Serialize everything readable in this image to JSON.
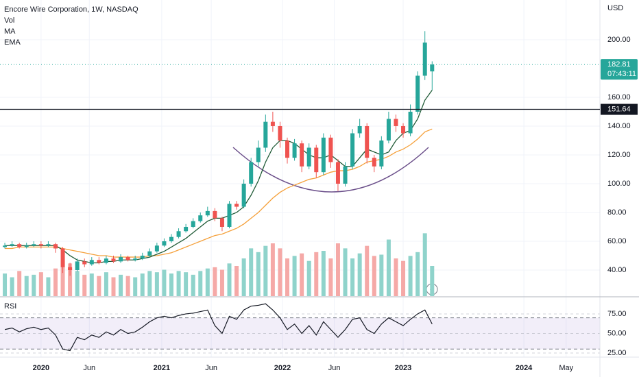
{
  "chart_data": {
    "type": "candlestick",
    "title": "Encore Wire Corporation, 1W, NASDAQ",
    "indicators": [
      "Vol",
      "MA",
      "EMA"
    ],
    "currency": "USD",
    "countdown": "07:43:11",
    "level": 151.64,
    "colors": {
      "up": "#26a69a",
      "down": "#ef5350",
      "volume_up": "#8fd3cb",
      "volume_down": "#f5a9a7",
      "ma": "#1f5a36",
      "ema": "#f5a03a",
      "rsi": "#131722",
      "level": "#131722"
    },
    "x": [
      2019.7,
      2019.76,
      2019.82,
      2019.88,
      2019.94,
      2020.0,
      2020.06,
      2020.12,
      2020.18,
      2020.24,
      2020.3,
      2020.36,
      2020.42,
      2020.48,
      2020.54,
      2020.6,
      2020.66,
      2020.72,
      2020.78,
      2020.84,
      2020.9,
      2020.96,
      2021.02,
      2021.08,
      2021.14,
      2021.2,
      2021.26,
      2021.32,
      2021.38,
      2021.44,
      2021.5,
      2021.56,
      2021.62,
      2021.68,
      2021.74,
      2021.8,
      2021.86,
      2021.92,
      2021.98,
      2022.04,
      2022.1,
      2022.16,
      2022.22,
      2022.28,
      2022.34,
      2022.4,
      2022.46,
      2022.52,
      2022.58,
      2022.64,
      2022.7,
      2022.76,
      2022.82,
      2022.88,
      2022.94,
      2023.0,
      2023.06,
      2023.12,
      2023.18,
      2023.24
    ],
    "open": [
      56,
      57,
      58,
      56,
      57,
      58,
      57,
      58,
      55,
      42,
      40,
      46,
      44,
      47,
      45,
      48,
      46,
      49,
      47,
      48,
      50,
      53,
      57,
      60,
      63,
      67,
      70,
      74,
      78,
      81,
      76,
      70,
      86,
      84,
      100,
      115,
      125,
      143,
      140,
      130,
      118,
      128,
      112,
      125,
      108,
      132,
      115,
      100,
      112,
      135,
      140,
      118,
      112,
      130,
      145,
      140,
      135,
      150,
      175,
      178
    ],
    "high": [
      59,
      60,
      59,
      59,
      60,
      60,
      60,
      59,
      56,
      45,
      48,
      48,
      49,
      49,
      50,
      50,
      51,
      50,
      50,
      52,
      55,
      59,
      62,
      65,
      69,
      72,
      76,
      80,
      84,
      83,
      77,
      88,
      88,
      103,
      118,
      130,
      148,
      150,
      143,
      132,
      131,
      130,
      128,
      127,
      135,
      134,
      117,
      115,
      138,
      145,
      142,
      120,
      133,
      150,
      148,
      142,
      155,
      178,
      206,
      185
    ],
    "low": [
      55,
      56,
      55,
      55,
      56,
      55,
      56,
      52,
      38,
      36,
      39,
      42,
      43,
      44,
      44,
      45,
      45,
      46,
      46,
      47,
      49,
      52,
      56,
      59,
      62,
      66,
      69,
      73,
      77,
      74,
      67,
      69,
      82,
      83,
      98,
      112,
      122,
      136,
      125,
      114,
      116,
      108,
      110,
      104,
      106,
      111,
      95,
      98,
      110,
      132,
      114,
      108,
      110,
      128,
      136,
      132,
      133,
      148,
      172,
      165
    ],
    "close": [
      57,
      58,
      56,
      57,
      58,
      57,
      58,
      55,
      42,
      40,
      46,
      44,
      47,
      45,
      48,
      46,
      49,
      47,
      48,
      50,
      53,
      57,
      60,
      63,
      67,
      70,
      74,
      78,
      81,
      76,
      70,
      86,
      84,
      100,
      115,
      125,
      143,
      140,
      130,
      118,
      128,
      112,
      125,
      108,
      132,
      115,
      100,
      112,
      135,
      140,
      118,
      112,
      130,
      145,
      140,
      135,
      150,
      175,
      198,
      182.81
    ],
    "volume": [
      180,
      150,
      200,
      160,
      170,
      190,
      150,
      220,
      280,
      260,
      200,
      170,
      180,
      160,
      190,
      150,
      170,
      160,
      150,
      180,
      200,
      190,
      210,
      180,
      200,
      190,
      170,
      200,
      220,
      230,
      210,
      260,
      240,
      300,
      380,
      350,
      400,
      420,
      380,
      300,
      320,
      340,
      280,
      350,
      360,
      300,
      420,
      380,
      300,
      340,
      400,
      320,
      330,
      450,
      300,
      280,
      320,
      350,
      500,
      240
    ],
    "volume_lim": [
      0,
      600
    ],
    "ma": [
      57,
      57,
      57,
      57,
      57,
      57,
      57,
      57,
      54,
      50,
      47,
      46,
      45,
      45,
      46,
      46,
      47,
      47,
      47,
      48,
      49,
      51,
      53,
      56,
      59,
      62,
      66,
      70,
      74,
      76,
      76,
      78,
      80,
      84,
      92,
      102,
      115,
      125,
      130,
      130,
      128,
      124,
      120,
      118,
      118,
      120,
      116,
      112,
      112,
      118,
      124,
      122,
      120,
      122,
      130,
      135,
      137,
      145,
      158,
      165
    ],
    "ema": [
      55,
      55,
      56,
      56,
      56,
      56,
      56,
      56,
      55,
      54,
      53,
      52,
      51,
      50,
      50,
      49,
      49,
      49,
      49,
      49,
      50,
      50,
      51,
      52,
      54,
      56,
      58,
      60,
      62,
      64,
      65,
      67,
      69,
      72,
      76,
      80,
      85,
      90,
      94,
      97,
      99,
      101,
      103,
      104,
      106,
      108,
      109,
      109,
      110,
      112,
      115,
      116,
      117,
      119,
      122,
      124,
      127,
      131,
      136,
      138
    ],
    "ylim": [
      21.9,
      227.6
    ],
    "yticks": [
      {
        "value": 40,
        "label": "40.00"
      },
      {
        "value": 60,
        "label": "60.00"
      },
      {
        "value": 80,
        "label": "80.00"
      },
      {
        "value": 100,
        "label": "100.00"
      },
      {
        "value": 120,
        "label": "120.00"
      },
      {
        "value": 140,
        "label": "140.00"
      },
      {
        "value": 160,
        "label": "160.00"
      },
      {
        "value": 200,
        "label": "200.00"
      }
    ],
    "xlim": [
      2019.66,
      2024.63
    ],
    "xticks": [
      2020,
      {
        "value": 2020.4,
        "label": "Jun"
      },
      2021,
      {
        "value": 2021.41,
        "label": "Jun"
      },
      2022,
      {
        "value": 2022.43,
        "label": "Jun"
      },
      2023,
      2024,
      {
        "value": 2024.35,
        "label": "May"
      }
    ],
    "rsi": {
      "title": "RSI",
      "values": [
        55,
        57,
        52,
        56,
        58,
        55,
        57,
        48,
        30,
        28,
        45,
        42,
        48,
        45,
        52,
        48,
        55,
        50,
        52,
        58,
        65,
        70,
        72,
        70,
        73,
        75,
        76,
        78,
        80,
        60,
        50,
        72,
        68,
        80,
        85,
        86,
        88,
        80,
        70,
        55,
        62,
        50,
        60,
        48,
        65,
        55,
        45,
        55,
        68,
        70,
        55,
        50,
        62,
        70,
        65,
        60,
        68,
        75,
        80,
        62
      ],
      "ylim": [
        20.6,
        92.5
      ],
      "yticks": [
        {
          "value": 25,
          "label": "25.00"
        },
        {
          "value": 50,
          "label": "50.00"
        },
        {
          "value": 75,
          "label": "75.00"
        }
      ],
      "bands": [
        30,
        70
      ]
    }
  }
}
